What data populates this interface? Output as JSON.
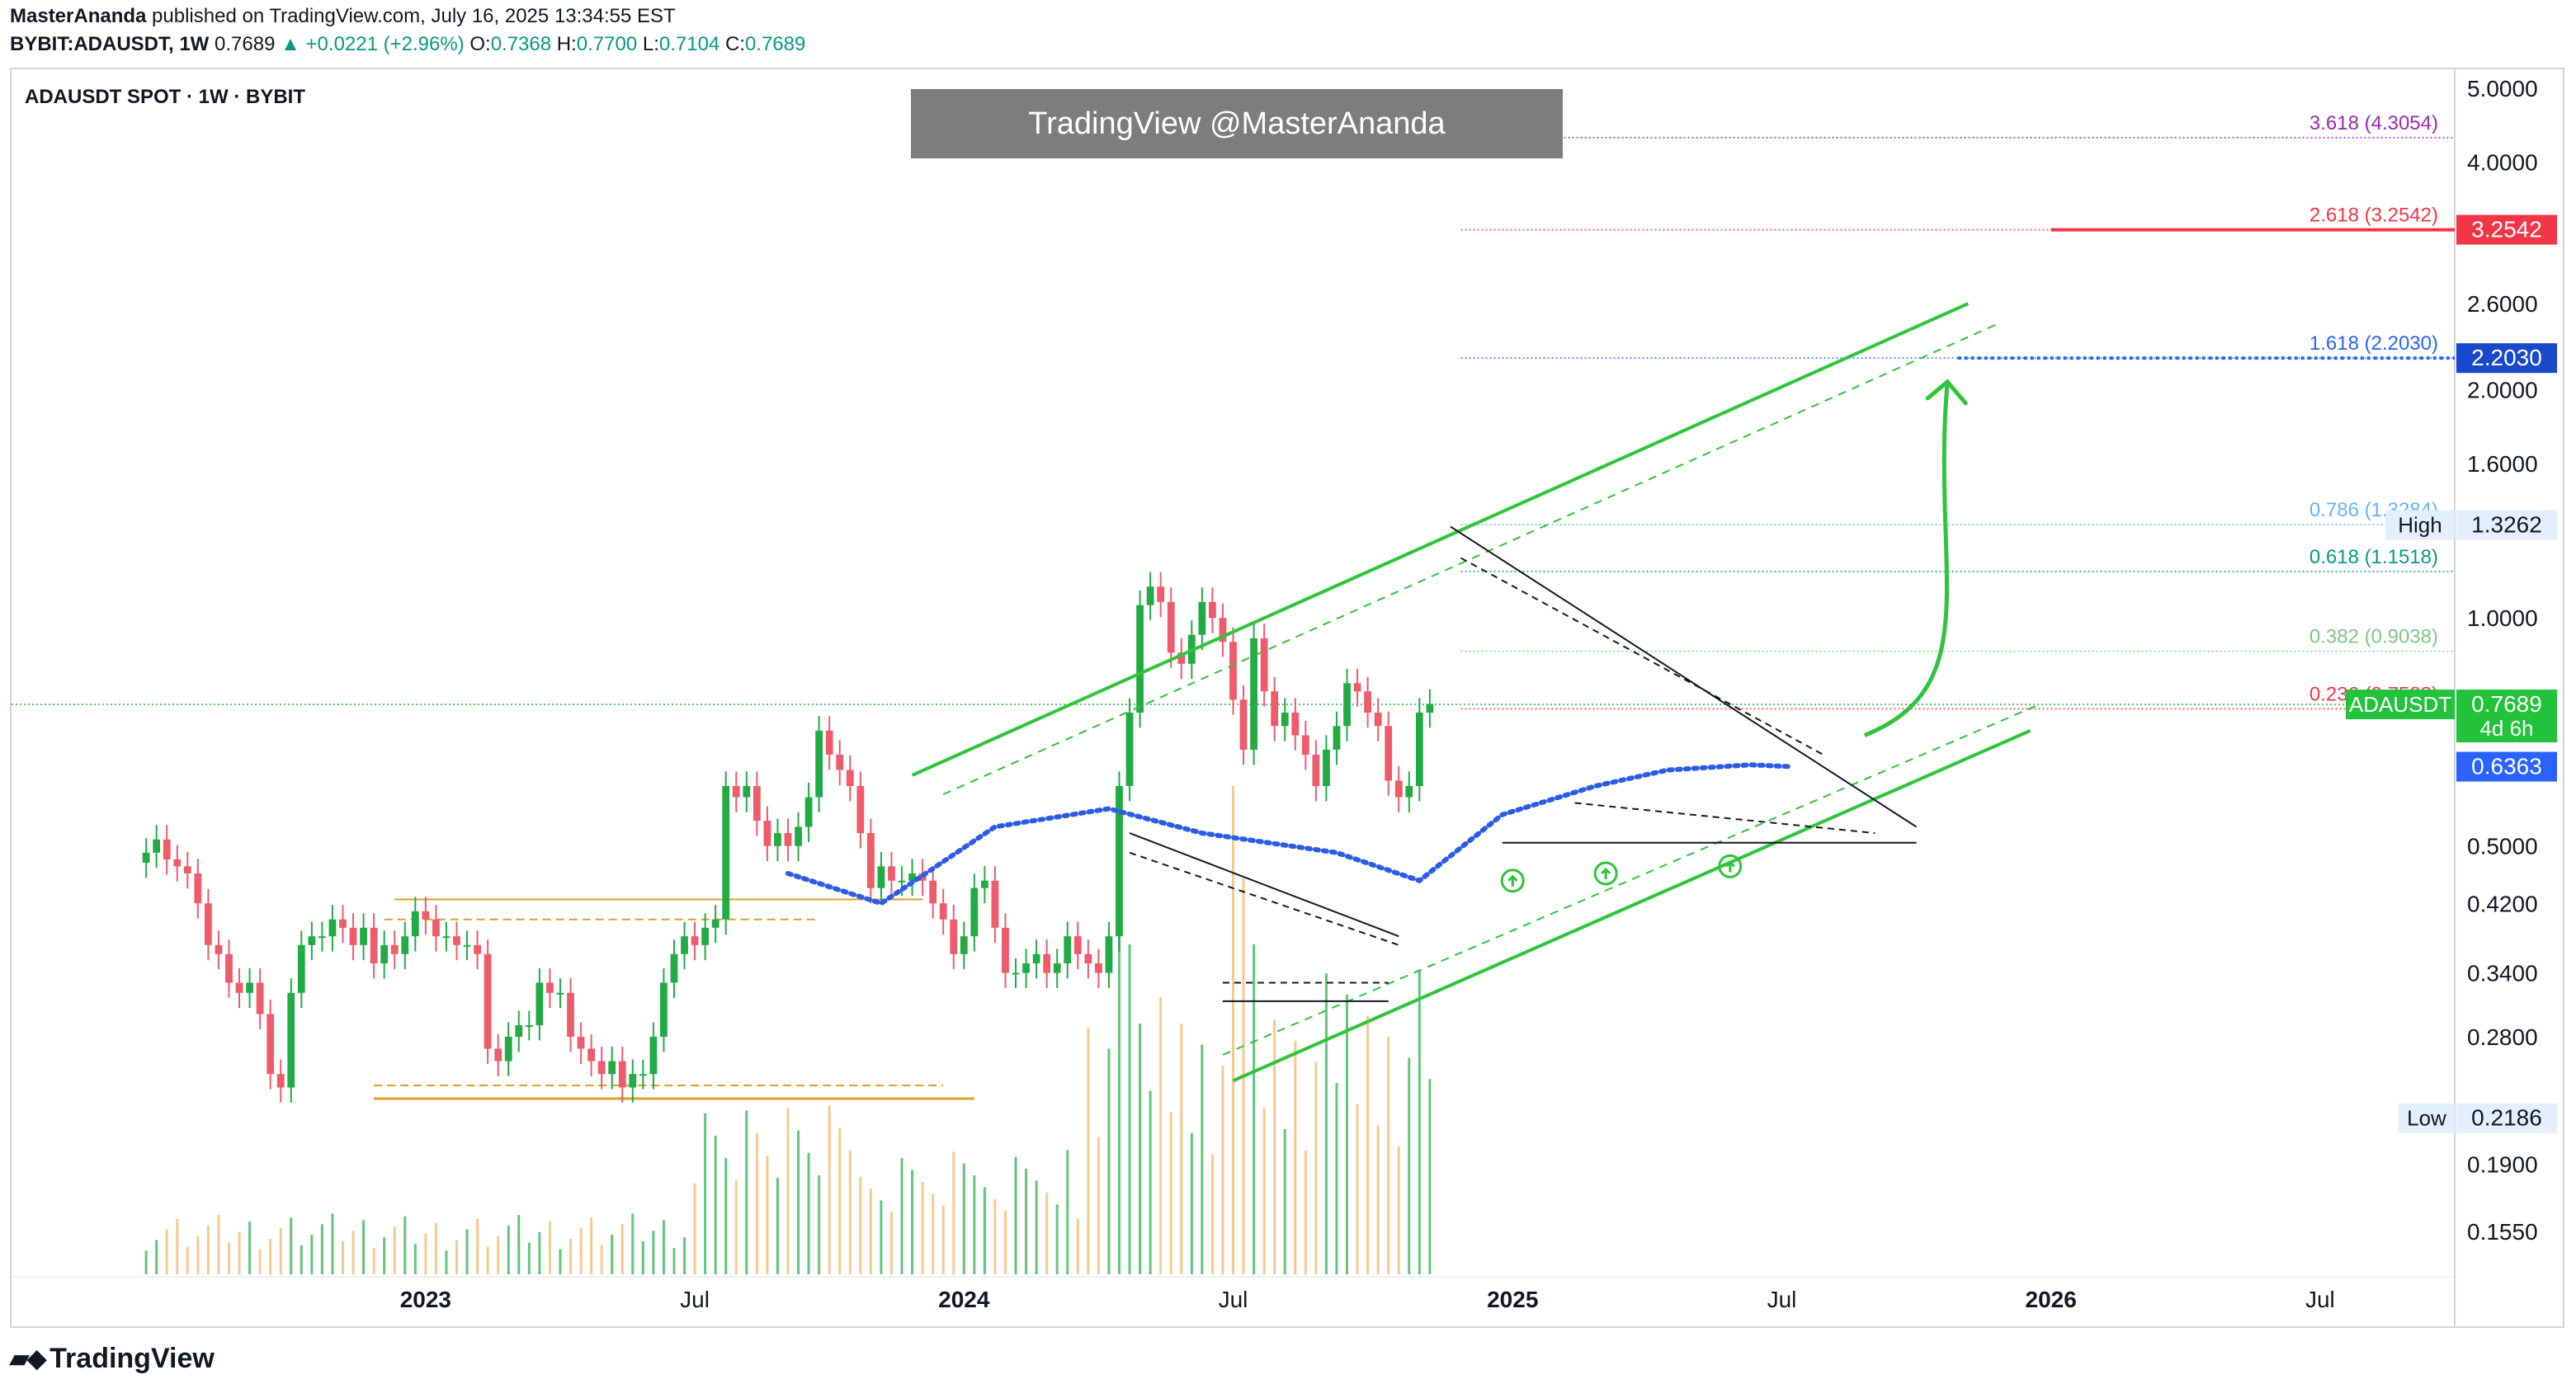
{
  "header": {
    "author": "MasterAnanda",
    "published": "published on TradingView.com, July 16, 2025 13:34:55 EST",
    "symbol_line": "BYBIT:ADAUSDT, 1W",
    "last": "0.7689",
    "change": "+0.0221 (+2.96%)",
    "o_label": "O:",
    "o_value": "0.7368",
    "h_label": "H:",
    "h_value": "0.7700",
    "l_label": "L:",
    "l_value": "0.7104",
    "c_label": "C:",
    "c_value": "0.7689"
  },
  "chart_title": "ADAUSDT SPOT · 1W · BYBIT",
  "watermark": "TradingView @MasterAnanda",
  "footer_logo": "TradingView",
  "colors": {
    "up": "#22ab45",
    "down": "#ef5b6b",
    "ma": "#2e5be6",
    "channel": "#2fc43b",
    "range": "#d9a12b",
    "fib_red": "#f23645",
    "fib_blue": "#2962ff",
    "fib_purple": "#9c27b0"
  },
  "chart_data": {
    "type": "candlestick",
    "scale": "log",
    "ylim": [
      0.135,
      5.3
    ],
    "x_start": "2022-03-28",
    "x_end": "2026-10-05",
    "yaxis_ticks": [
      "5.0000",
      "4.0000",
      "2.6000",
      "2.0000",
      "1.6000",
      "1.0000",
      "0.5000",
      "0.4200",
      "0.3400",
      "0.2800",
      "0.1900",
      "0.1550"
    ],
    "xaxis_ticks": [
      {
        "label": "2023",
        "date": "2023-01-02",
        "bold": true
      },
      {
        "label": "Jul",
        "date": "2023-07-03",
        "bold": false
      },
      {
        "label": "2024",
        "date": "2024-01-01",
        "bold": true
      },
      {
        "label": "Jul",
        "date": "2024-07-01",
        "bold": false
      },
      {
        "label": "2025",
        "date": "2025-01-06",
        "bold": true
      },
      {
        "label": "Jul",
        "date": "2025-07-07",
        "bold": false
      },
      {
        "label": "2026",
        "date": "2026-01-05",
        "bold": true
      },
      {
        "label": "Jul",
        "date": "2026-07-06",
        "bold": false
      }
    ],
    "candles_first_week": "2022-06-27",
    "closes": [
      0.49,
      0.51,
      0.48,
      0.47,
      0.46,
      0.42,
      0.37,
      0.36,
      0.33,
      0.32,
      0.33,
      0.3,
      0.25,
      0.24,
      0.32,
      0.37,
      0.38,
      0.38,
      0.4,
      0.39,
      0.37,
      0.39,
      0.35,
      0.37,
      0.36,
      0.38,
      0.41,
      0.4,
      0.38,
      0.38,
      0.37,
      0.37,
      0.36,
      0.27,
      0.26,
      0.28,
      0.29,
      0.29,
      0.33,
      0.32,
      0.32,
      0.28,
      0.27,
      0.26,
      0.25,
      0.26,
      0.24,
      0.25,
      0.25,
      0.28,
      0.33,
      0.36,
      0.38,
      0.37,
      0.39,
      0.4,
      0.6,
      0.58,
      0.6,
      0.54,
      0.5,
      0.52,
      0.5,
      0.53,
      0.58,
      0.71,
      0.66,
      0.63,
      0.6,
      0.52,
      0.44,
      0.47,
      0.45,
      0.45,
      0.46,
      0.45,
      0.42,
      0.4,
      0.36,
      0.38,
      0.44,
      0.45,
      0.39,
      0.34,
      0.34,
      0.35,
      0.36,
      0.34,
      0.35,
      0.38,
      0.36,
      0.35,
      0.34,
      0.38,
      0.6,
      0.75,
      1.04,
      1.1,
      1.05,
      0.9,
      0.87,
      0.95,
      1.05,
      1.0,
      0.93,
      0.78,
      0.67,
      0.94,
      0.8,
      0.72,
      0.75,
      0.7,
      0.66,
      0.6,
      0.67,
      0.72,
      0.82,
      0.8,
      0.75,
      0.72,
      0.61,
      0.58,
      0.6,
      0.75,
      0.77
    ],
    "ma": [
      [
        0.46,
        "2023-09-04"
      ],
      [
        0.42,
        "2023-11-06"
      ],
      [
        0.53,
        "2024-01-22"
      ],
      [
        0.56,
        "2024-04-08"
      ],
      [
        0.52,
        "2024-06-10"
      ],
      [
        0.49,
        "2024-09-09"
      ],
      [
        0.45,
        "2024-11-04"
      ],
      [
        0.55,
        "2024-12-30"
      ],
      [
        0.6,
        "2025-03-03"
      ],
      [
        0.63,
        "2025-04-21"
      ],
      [
        0.64,
        "2025-06-16"
      ],
      [
        0.6363,
        "2025-07-14"
      ]
    ],
    "fib_levels": [
      {
        "ratio": "3.618 (4.3054)",
        "value": 4.3054,
        "color": "#9c27b0"
      },
      {
        "ratio": "2.618 (3.2542)",
        "value": 3.2542,
        "color": "#f23645"
      },
      {
        "ratio": "1.618 (2.2030)",
        "value": 2.203,
        "color": "#2962ff"
      },
      {
        "ratio": "0.786 (1.3284)",
        "value": 1.3284,
        "color": "#64b5f6"
      },
      {
        "ratio": "0.618 (1.1518)",
        "value": 1.1518,
        "color": "#089981"
      },
      {
        "ratio": "0.382 (0.9038)",
        "value": 0.9038,
        "color": "#81c784"
      },
      {
        "ratio": "0.236 (0.7588)",
        "value": 0.7588,
        "color": "#f23645"
      }
    ],
    "price_labels": [
      {
        "text": "3.2542",
        "value": 3.2542,
        "bg": "#f23645",
        "fg": "#ffffff"
      },
      {
        "text": "2.2030",
        "value": 2.203,
        "bg": "#1848cc",
        "fg": "#ffffff"
      },
      {
        "tag": "High",
        "text": "1.3262",
        "value": 1.3262,
        "bg": "#e3eefe",
        "fg": "#131722"
      },
      {
        "tag": "ADAUSDT",
        "text": "0.7689",
        "sub": "4d 6h",
        "value": 0.7689,
        "bg": "#22c33b",
        "fg": "#ffffff"
      },
      {
        "text": "0.6363",
        "value": 0.6363,
        "bg": "#2962ff",
        "fg": "#ffffff"
      },
      {
        "tag": "Low",
        "text": "0.2186",
        "value": 0.2186,
        "bg": "#e3eefe",
        "fg": "#131722"
      }
    ]
  }
}
